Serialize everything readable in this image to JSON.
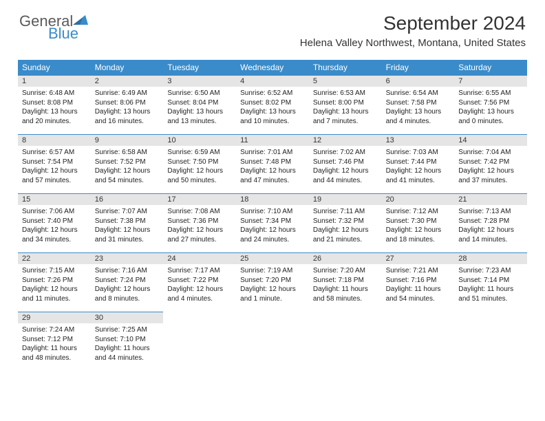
{
  "logo": {
    "part1": "General",
    "part2": "Blue"
  },
  "title": "September 2024",
  "location": "Helena Valley Northwest, Montana, United States",
  "colors": {
    "header_bg": "#3a8bc9",
    "daynum_bg": "#e5e5e5",
    "border": "#3a8bc9",
    "logo_gray": "#5a5a5a",
    "logo_blue": "#3a8bc9"
  },
  "weekdays": [
    "Sunday",
    "Monday",
    "Tuesday",
    "Wednesday",
    "Thursday",
    "Friday",
    "Saturday"
  ],
  "days": [
    {
      "n": "1",
      "sr": "Sunrise: 6:48 AM",
      "ss": "Sunset: 8:08 PM",
      "dl": "Daylight: 13 hours and 20 minutes."
    },
    {
      "n": "2",
      "sr": "Sunrise: 6:49 AM",
      "ss": "Sunset: 8:06 PM",
      "dl": "Daylight: 13 hours and 16 minutes."
    },
    {
      "n": "3",
      "sr": "Sunrise: 6:50 AM",
      "ss": "Sunset: 8:04 PM",
      "dl": "Daylight: 13 hours and 13 minutes."
    },
    {
      "n": "4",
      "sr": "Sunrise: 6:52 AM",
      "ss": "Sunset: 8:02 PM",
      "dl": "Daylight: 13 hours and 10 minutes."
    },
    {
      "n": "5",
      "sr": "Sunrise: 6:53 AM",
      "ss": "Sunset: 8:00 PM",
      "dl": "Daylight: 13 hours and 7 minutes."
    },
    {
      "n": "6",
      "sr": "Sunrise: 6:54 AM",
      "ss": "Sunset: 7:58 PM",
      "dl": "Daylight: 13 hours and 4 minutes."
    },
    {
      "n": "7",
      "sr": "Sunrise: 6:55 AM",
      "ss": "Sunset: 7:56 PM",
      "dl": "Daylight: 13 hours and 0 minutes."
    },
    {
      "n": "8",
      "sr": "Sunrise: 6:57 AM",
      "ss": "Sunset: 7:54 PM",
      "dl": "Daylight: 12 hours and 57 minutes."
    },
    {
      "n": "9",
      "sr": "Sunrise: 6:58 AM",
      "ss": "Sunset: 7:52 PM",
      "dl": "Daylight: 12 hours and 54 minutes."
    },
    {
      "n": "10",
      "sr": "Sunrise: 6:59 AM",
      "ss": "Sunset: 7:50 PM",
      "dl": "Daylight: 12 hours and 50 minutes."
    },
    {
      "n": "11",
      "sr": "Sunrise: 7:01 AM",
      "ss": "Sunset: 7:48 PM",
      "dl": "Daylight: 12 hours and 47 minutes."
    },
    {
      "n": "12",
      "sr": "Sunrise: 7:02 AM",
      "ss": "Sunset: 7:46 PM",
      "dl": "Daylight: 12 hours and 44 minutes."
    },
    {
      "n": "13",
      "sr": "Sunrise: 7:03 AM",
      "ss": "Sunset: 7:44 PM",
      "dl": "Daylight: 12 hours and 41 minutes."
    },
    {
      "n": "14",
      "sr": "Sunrise: 7:04 AM",
      "ss": "Sunset: 7:42 PM",
      "dl": "Daylight: 12 hours and 37 minutes."
    },
    {
      "n": "15",
      "sr": "Sunrise: 7:06 AM",
      "ss": "Sunset: 7:40 PM",
      "dl": "Daylight: 12 hours and 34 minutes."
    },
    {
      "n": "16",
      "sr": "Sunrise: 7:07 AM",
      "ss": "Sunset: 7:38 PM",
      "dl": "Daylight: 12 hours and 31 minutes."
    },
    {
      "n": "17",
      "sr": "Sunrise: 7:08 AM",
      "ss": "Sunset: 7:36 PM",
      "dl": "Daylight: 12 hours and 27 minutes."
    },
    {
      "n": "18",
      "sr": "Sunrise: 7:10 AM",
      "ss": "Sunset: 7:34 PM",
      "dl": "Daylight: 12 hours and 24 minutes."
    },
    {
      "n": "19",
      "sr": "Sunrise: 7:11 AM",
      "ss": "Sunset: 7:32 PM",
      "dl": "Daylight: 12 hours and 21 minutes."
    },
    {
      "n": "20",
      "sr": "Sunrise: 7:12 AM",
      "ss": "Sunset: 7:30 PM",
      "dl": "Daylight: 12 hours and 18 minutes."
    },
    {
      "n": "21",
      "sr": "Sunrise: 7:13 AM",
      "ss": "Sunset: 7:28 PM",
      "dl": "Daylight: 12 hours and 14 minutes."
    },
    {
      "n": "22",
      "sr": "Sunrise: 7:15 AM",
      "ss": "Sunset: 7:26 PM",
      "dl": "Daylight: 12 hours and 11 minutes."
    },
    {
      "n": "23",
      "sr": "Sunrise: 7:16 AM",
      "ss": "Sunset: 7:24 PM",
      "dl": "Daylight: 12 hours and 8 minutes."
    },
    {
      "n": "24",
      "sr": "Sunrise: 7:17 AM",
      "ss": "Sunset: 7:22 PM",
      "dl": "Daylight: 12 hours and 4 minutes."
    },
    {
      "n": "25",
      "sr": "Sunrise: 7:19 AM",
      "ss": "Sunset: 7:20 PM",
      "dl": "Daylight: 12 hours and 1 minute."
    },
    {
      "n": "26",
      "sr": "Sunrise: 7:20 AM",
      "ss": "Sunset: 7:18 PM",
      "dl": "Daylight: 11 hours and 58 minutes."
    },
    {
      "n": "27",
      "sr": "Sunrise: 7:21 AM",
      "ss": "Sunset: 7:16 PM",
      "dl": "Daylight: 11 hours and 54 minutes."
    },
    {
      "n": "28",
      "sr": "Sunrise: 7:23 AM",
      "ss": "Sunset: 7:14 PM",
      "dl": "Daylight: 11 hours and 51 minutes."
    },
    {
      "n": "29",
      "sr": "Sunrise: 7:24 AM",
      "ss": "Sunset: 7:12 PM",
      "dl": "Daylight: 11 hours and 48 minutes."
    },
    {
      "n": "30",
      "sr": "Sunrise: 7:25 AM",
      "ss": "Sunset: 7:10 PM",
      "dl": "Daylight: 11 hours and 44 minutes."
    }
  ]
}
